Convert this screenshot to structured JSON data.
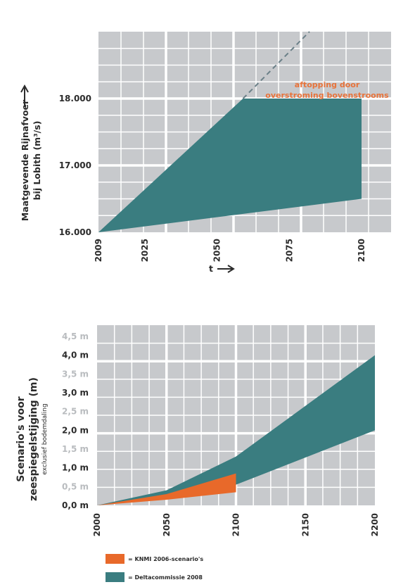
{
  "colors": {
    "grid_bg": "#c7c9cc",
    "grid_line": "#ffffff",
    "teal": "#3a7d80",
    "orange": "#e8692a",
    "dashed": "#6b8088"
  },
  "chart_data": [
    {
      "type": "area",
      "ylabel_line1": "Maatgevende Rijnafvoer",
      "ylabel_line2": "bij Lobith (m³/s)",
      "xlabel": "t",
      "xticks": [
        "2009",
        "2025",
        "2050",
        "2075",
        "2100"
      ],
      "yticks": [
        "16.000",
        "17.000",
        "18.000"
      ],
      "xlim": [
        2009,
        2100
      ],
      "ylim": [
        16000,
        19000
      ],
      "series": [
        {
          "upper": [
            [
              2009,
              16000
            ],
            [
              2059,
              18000
            ],
            [
              2100,
              18000
            ]
          ],
          "lower": [
            [
              2009,
              16000
            ],
            [
              2100,
              16500
            ]
          ]
        }
      ],
      "dashed_extension": [
        [
          2059,
          18000
        ],
        [
          2082,
          19000
        ]
      ],
      "annotation_line1": "aftopping door",
      "annotation_line2": "overstroming bovenstrooms"
    },
    {
      "type": "area",
      "ylabel_line1": "Scenario's voor",
      "ylabel_line2": "zeespiegelstijging (m)",
      "ylabel_line3": "exclusief bodemdaling",
      "xticks": [
        "2000",
        "2050",
        "2100",
        "2150",
        "2200"
      ],
      "yticks": [
        "0,0 m",
        "0,5 m",
        "1,0 m",
        "1,5 m",
        "2,0 m",
        "2,5 m",
        "3,0 m",
        "3,5 m",
        "4,0 m",
        "4,5 m"
      ],
      "ytick_light": [
        false,
        true,
        false,
        true,
        false,
        true,
        false,
        true,
        false,
        true
      ],
      "xlim": [
        2000,
        2200
      ],
      "ylim": [
        0,
        4.8
      ],
      "series": [
        {
          "name": "= Deltacommissie 2008",
          "upper": [
            [
              2000,
              0
            ],
            [
              2050,
              0.4
            ],
            [
              2100,
              1.3
            ],
            [
              2200,
              4.0
            ]
          ],
          "lower": [
            [
              2000,
              0
            ],
            [
              2050,
              0.2
            ],
            [
              2100,
              0.55
            ],
            [
              2200,
              2.0
            ]
          ]
        },
        {
          "name": "= KNMI 2006-scenario's",
          "upper": [
            [
              2000,
              0
            ],
            [
              2050,
              0.3
            ],
            [
              2100,
              0.85
            ]
          ],
          "lower": [
            [
              2000,
              0
            ],
            [
              2050,
              0.15
            ],
            [
              2100,
              0.35
            ]
          ]
        }
      ]
    }
  ]
}
